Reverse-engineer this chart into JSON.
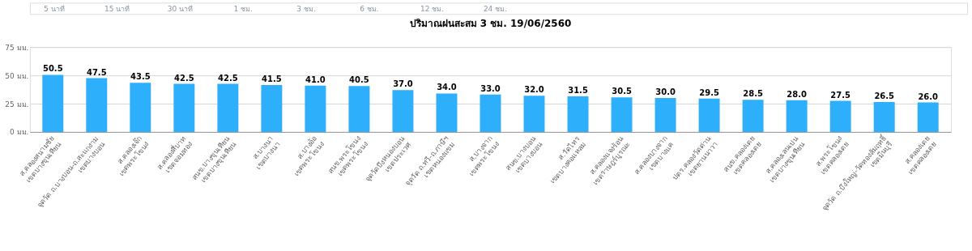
{
  "chart_data": {
    "type": "bar",
    "title": "ปริมาณฝนสะสม 3 ชม. 19/06/2560",
    "annotations": [
      "5 นาที",
      "15 นาที",
      "30 นาที",
      "1 ชม.",
      "3 ชม.",
      "6 ชม.",
      "12 ชม.",
      "24 ชม."
    ],
    "categories": [
      "ส.คลองสนามชัย\nเขตบางขุนเทียน",
      "จุดวัด ถ.บางบอน-ถ.สะแกงาม\nเขตบางบอน",
      "ส.คลองเจ๊ก\nเขตพระโขนง",
      "ส.คลองสี่บาท\nเขตจอมทอง",
      "สนข.บางขุนเทียน\nเขตบางขุนเทียน",
      "ส.บางนา\nเขตบางนา",
      "ส.บางอ้อ\nเขตพระโขนง",
      "สนข.พระโขนง\nเขตพระโขนง",
      "จุดวัดบึงหนองบอน\nเขตประเวศ",
      "จุดวัด ถ.ทวี-ถ.ภาษีฯ\nเขตหนองแขม",
      "ส.บางจาก\nเขตพระโขนง",
      "สนข.บางบอน\nเขตบางบอน",
      "ส.วัดไทร\nเขตบางคอแหลม",
      "ส.คลองแจงร้อน\nเขตราษฎร์บูรณะ",
      "ส.คลองบางจาก\nเขตบางแค",
      "ปตร.คลองวัดด่าน\nเขตยานนาวา",
      "สนข.คลองเตย\nเขตคลองเตย",
      "ส.คลองเลนเปน\nเขตบางขุนเทียน",
      "ส.พระโขนง\nเขตคลองเตย",
      "จุดวัด ถ.บึงใหญ่-วัดทองสัมฤทธิ์\nเขตมีนบุรี",
      "ส.คลองเตย\nเขตคลองเตย"
    ],
    "values": [
      50.5,
      47.5,
      43.5,
      42.5,
      42.5,
      41.5,
      41.0,
      40.5,
      37.0,
      34.0,
      33.0,
      32.0,
      31.5,
      30.5,
      30.0,
      29.5,
      28.5,
      28.0,
      27.5,
      26.5,
      26.0
    ],
    "color": "#2eaffb",
    "ylim": [
      0,
      75
    ],
    "yticks": [
      {
        "value": 0,
        "label": "0 มม."
      },
      {
        "value": 25,
        "label": "25 มม."
      },
      {
        "value": 50,
        "label": "50 มม."
      },
      {
        "value": 75,
        "label": "75 มม."
      }
    ],
    "value_labels": [
      "50.5",
      "47.5",
      "43.5",
      "42.5",
      "42.5",
      "41.5",
      "41.0",
      "40.5",
      "37.0",
      "34.0",
      "33.0",
      "32.0",
      "31.5",
      "30.5",
      "30.0",
      "29.5",
      "28.5",
      "28.0",
      "27.5",
      "26.5",
      "26.0"
    ],
    "grid": "y"
  }
}
